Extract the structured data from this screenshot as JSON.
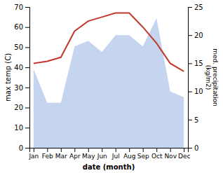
{
  "chart_data": {
    "type": "line",
    "categories": [
      "Jan",
      "Feb",
      "Mar",
      "Apr",
      "May",
      "Jun",
      "Jul",
      "Aug",
      "Sep",
      "Oct",
      "Nov",
      "Dec"
    ],
    "xlabel": "date (month)",
    "ylabel": "max temp (C)",
    "y2label": "med. precipitation\n(kg/m2)",
    "ylim": [
      0,
      70
    ],
    "yticks": [
      0,
      10,
      20,
      30,
      40,
      50,
      60,
      70
    ],
    "y2lim": [
      0,
      25
    ],
    "y2ticks": [
      0,
      5,
      10,
      15,
      20,
      25
    ],
    "series": [
      {
        "type": "area",
        "axis": "y2",
        "color": "#c5d4ef",
        "values": [
          14,
          8,
          8,
          18,
          19,
          17,
          20,
          20,
          18,
          23,
          10,
          9
        ]
      },
      {
        "type": "line",
        "color": "#c0392b",
        "values": [
          42,
          43,
          45,
          58,
          63,
          65,
          67,
          67,
          60,
          52,
          42,
          38
        ]
      }
    ]
  }
}
